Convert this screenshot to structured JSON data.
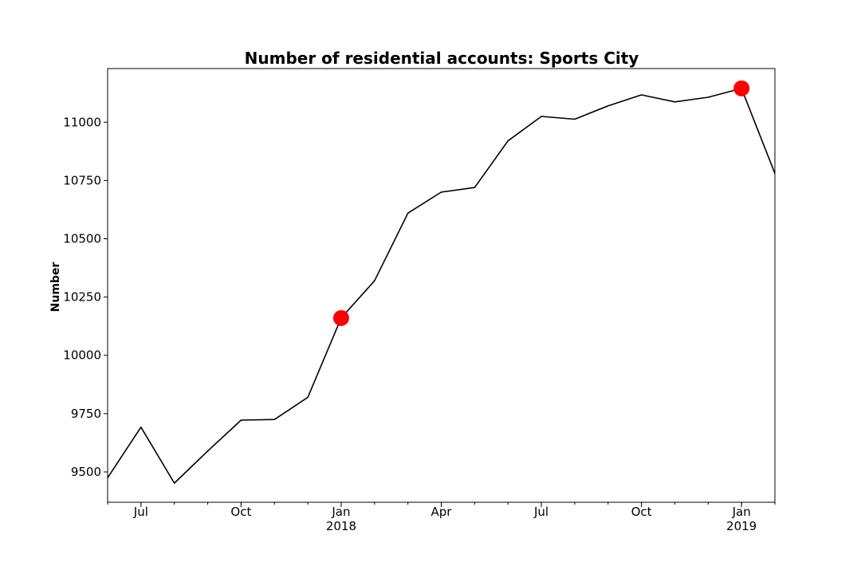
{
  "chart_data": {
    "type": "line",
    "title": "Number of residential accounts: Sports City",
    "xlabel": "",
    "ylabel": "Number",
    "x": [
      "2017-06",
      "2017-07",
      "2017-08",
      "2017-09",
      "2017-10",
      "2017-11",
      "2017-12",
      "2018-01",
      "2018-02",
      "2018-03",
      "2018-04",
      "2018-05",
      "2018-06",
      "2018-07",
      "2018-08",
      "2018-09",
      "2018-10",
      "2018-11",
      "2018-12",
      "2019-01",
      "2019-02"
    ],
    "series": [
      {
        "color": "#000000",
        "values": [
          9475,
          9692,
          9452,
          9590,
          9722,
          9725,
          9820,
          10160,
          10320,
          10610,
          10700,
          10720,
          10920,
          11025,
          11013,
          11070,
          11117,
          11087,
          11107,
          11145,
          10780
        ]
      }
    ],
    "highlighted_points": [
      {
        "x": "2018-01",
        "y": 10160,
        "color": "#ff0000"
      },
      {
        "x": "2019-01",
        "y": 11145,
        "color": "#ff0000"
      }
    ],
    "ylim": [
      9370,
      11230
    ],
    "xlim": [
      "2017-06",
      "2019-02"
    ],
    "y_ticks": [
      9500,
      9750,
      10000,
      10250,
      10500,
      10750,
      11000
    ],
    "x_ticks": [
      {
        "at": "2017-07",
        "label": "Jul",
        "sublabel": ""
      },
      {
        "at": "2017-10",
        "label": "Oct",
        "sublabel": ""
      },
      {
        "at": "2018-01",
        "label": "Jan",
        "sublabel": "2018"
      },
      {
        "at": "2018-04",
        "label": "Apr",
        "sublabel": ""
      },
      {
        "at": "2018-07",
        "label": "Jul",
        "sublabel": ""
      },
      {
        "at": "2018-10",
        "label": "Oct",
        "sublabel": ""
      },
      {
        "at": "2019-01",
        "label": "Jan",
        "sublabel": "2019"
      }
    ],
    "grid": false,
    "legend": "none"
  }
}
